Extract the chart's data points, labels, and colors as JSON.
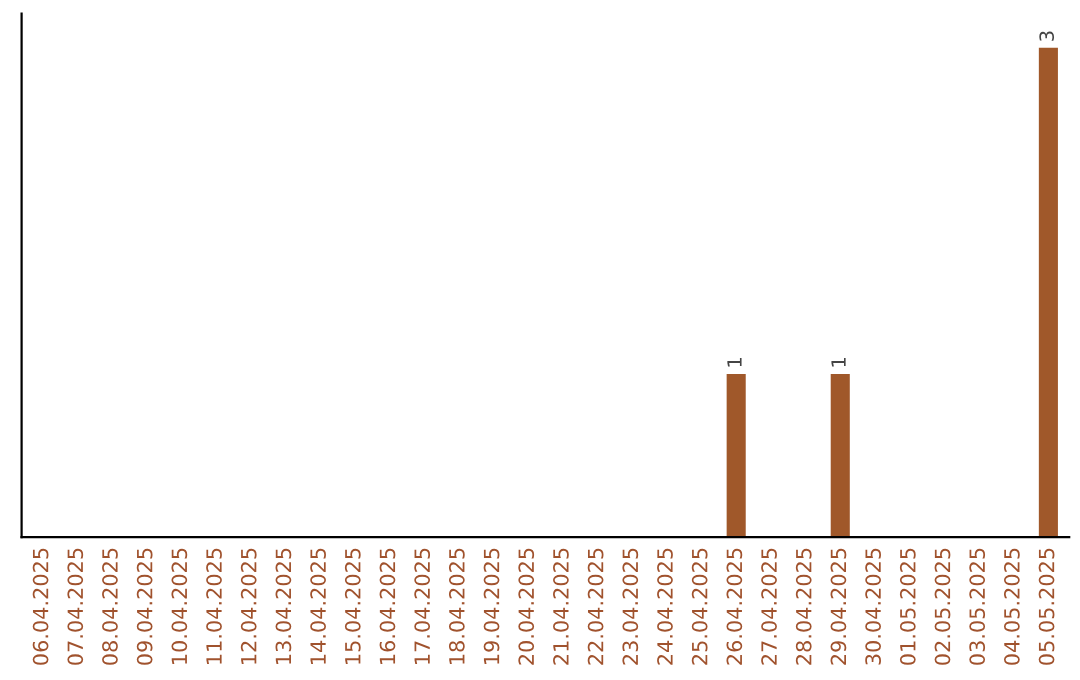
{
  "chart_data": {
    "type": "bar",
    "categories": [
      "06.04.2025",
      "07.04.2025",
      "08.04.2025",
      "09.04.2025",
      "10.04.2025",
      "11.04.2025",
      "12.04.2025",
      "13.04.2025",
      "14.04.2025",
      "15.04.2025",
      "16.04.2025",
      "17.04.2025",
      "18.04.2025",
      "19.04.2025",
      "20.04.2025",
      "21.04.2025",
      "22.04.2025",
      "23.04.2025",
      "24.04.2025",
      "25.04.2025",
      "26.04.2025",
      "27.04.2025",
      "28.04.2025",
      "29.04.2025",
      "30.04.2025",
      "01.05.2025",
      "02.05.2025",
      "03.05.2025",
      "04.05.2025",
      "05.05.2025"
    ],
    "values": [
      null,
      null,
      null,
      null,
      null,
      null,
      null,
      null,
      null,
      null,
      null,
      null,
      null,
      null,
      null,
      null,
      null,
      null,
      null,
      null,
      1,
      null,
      null,
      1,
      null,
      null,
      null,
      null,
      null,
      3
    ],
    "value_labels": [
      null,
      null,
      null,
      null,
      null,
      null,
      null,
      null,
      null,
      null,
      null,
      null,
      null,
      null,
      null,
      null,
      null,
      null,
      null,
      null,
      "1",
      null,
      null,
      "1",
      null,
      null,
      null,
      null,
      null,
      "3"
    ],
    "color": "#a0582a",
    "tick_labels": "x",
    "grid": false
  }
}
